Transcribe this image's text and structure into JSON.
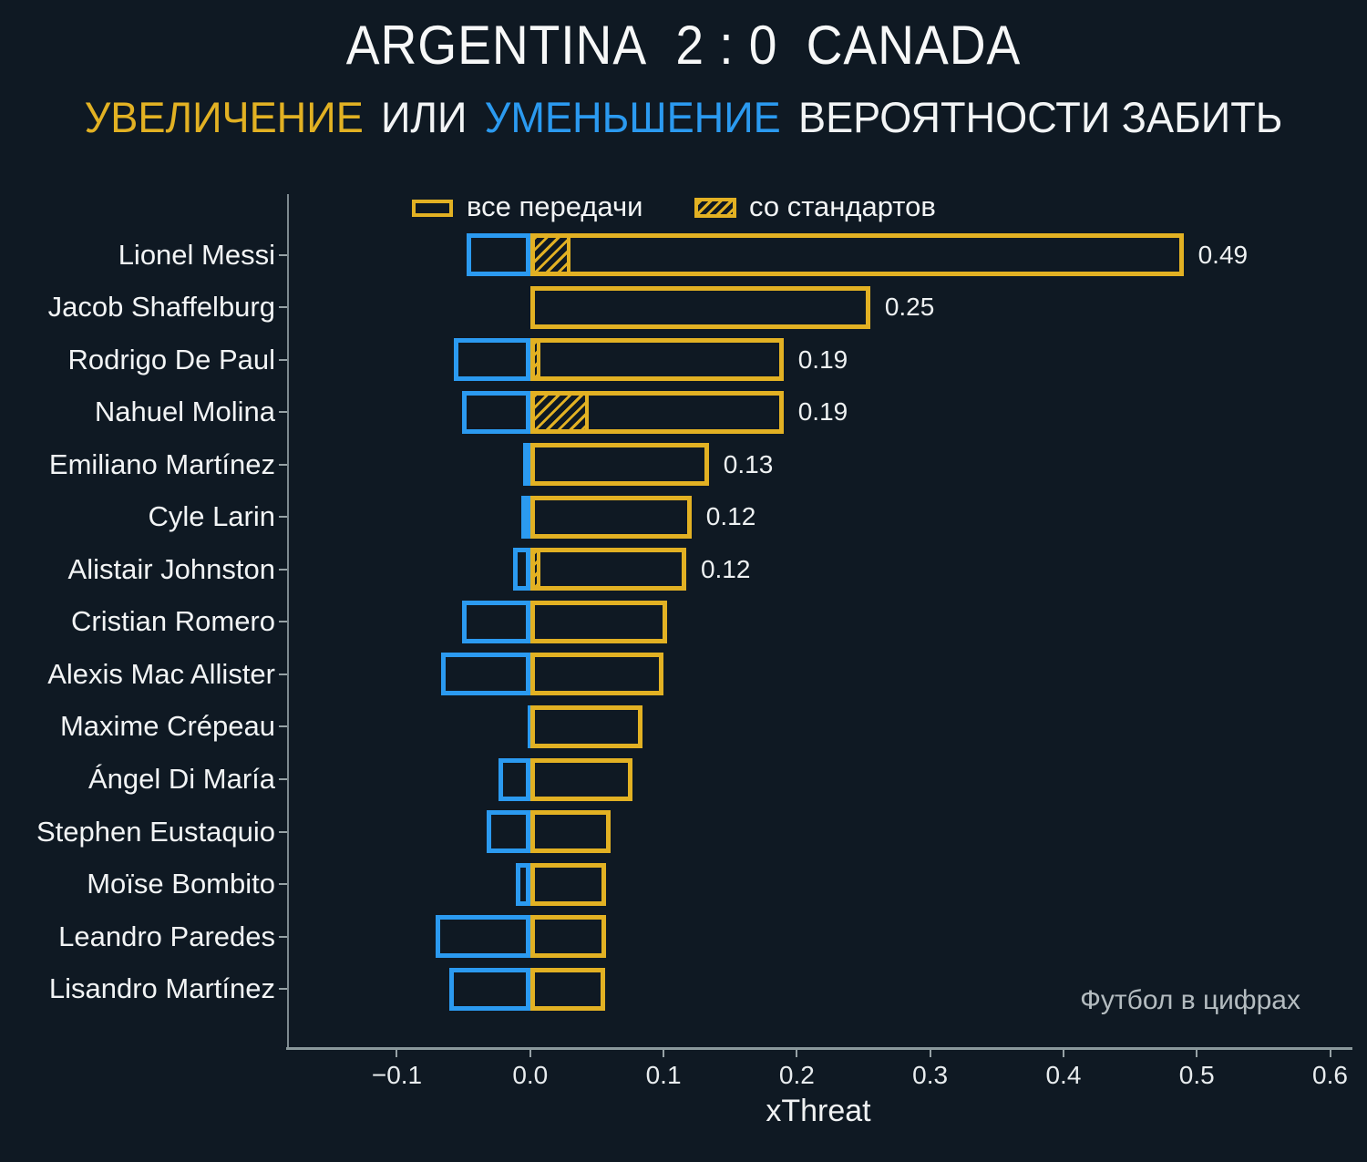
{
  "header": {
    "team_home": "ARGENTINA",
    "score": "2 : 0",
    "team_away": "CANADA",
    "subtitle_increase": "УВЕЛИЧЕНИЕ",
    "subtitle_or": "ИЛИ",
    "subtitle_decrease": "УМЕНЬШЕНИЕ",
    "subtitle_rest": "ВЕРОЯТНОСТИ ЗАБИТЬ"
  },
  "legend": {
    "all_passes": "все передачи",
    "set_pieces": "со стандартов"
  },
  "watermark": "Футбол в цифрах",
  "colors": {
    "bg": "#0f1923",
    "gold": "#e2b123",
    "blue": "#2b9af0",
    "text": "#f2f4f5",
    "axis": "#8a989b",
    "watermark": "#b4bcc0"
  },
  "chart_data": {
    "type": "bar",
    "orientation": "horizontal",
    "title": "ARGENTINA 2 : 0 CANADA — УВЕЛИЧЕНИЕ ИЛИ УМЕНЬШЕНИЕ ВЕРОЯТНОСТИ ЗАБИТЬ",
    "xlabel": "xThreat",
    "xlim": [
      -0.181,
      0.614
    ],
    "xticks": [
      -0.1,
      0.0,
      0.1,
      0.2,
      0.3,
      0.4,
      0.5,
      0.6
    ],
    "xtick_labels": [
      "−0.1",
      "0.0",
      "0.1",
      "0.2",
      "0.3",
      "0.4",
      "0.5",
      "0.6"
    ],
    "grid": false,
    "legend_position": "top",
    "categories": [
      "Lionel Messi",
      "Jacob Shaffelburg",
      "Rodrigo De Paul",
      "Nahuel Molina",
      "Emiliano Martínez",
      "Cyle Larin",
      "Alistair Johnston",
      "Cristian Romero",
      "Alexis Mac Allister",
      "Maxime Crépeau",
      "Ángel Di María",
      "Stephen Eustaquio",
      "Moïse Bombito",
      "Leandro Paredes",
      "Lisandro Martínez"
    ],
    "series": [
      {
        "name": "все передачи (увеличение xThreat)",
        "color": "#e2b123",
        "style": "outline",
        "values": [
          0.49,
          0.255,
          0.19,
          0.19,
          0.134,
          0.121,
          0.117,
          0.103,
          0.1,
          0.084,
          0.077,
          0.06,
          0.057,
          0.057,
          0.056
        ]
      },
      {
        "name": "уменьшение xThreat",
        "color": "#2b9af0",
        "style": "outline",
        "values": [
          -0.048,
          0,
          -0.057,
          -0.051,
          -0.005,
          -0.007,
          -0.013,
          -0.051,
          -0.067,
          -0.002,
          -0.024,
          -0.033,
          -0.011,
          -0.071,
          -0.061
        ]
      },
      {
        "name": "со стандартов",
        "color": "#e2b123",
        "style": "hatch",
        "values": [
          0.03,
          0,
          0.008,
          0.044,
          0,
          0,
          0.008,
          0,
          0,
          0,
          0,
          0.002,
          0,
          0,
          0
        ]
      }
    ],
    "bar_labels": [
      "0.49",
      "0.25",
      "0.19",
      "0.19",
      "0.13",
      "0.12",
      "0.12",
      "",
      "",
      "",
      "",
      "",
      "",
      "",
      ""
    ]
  }
}
